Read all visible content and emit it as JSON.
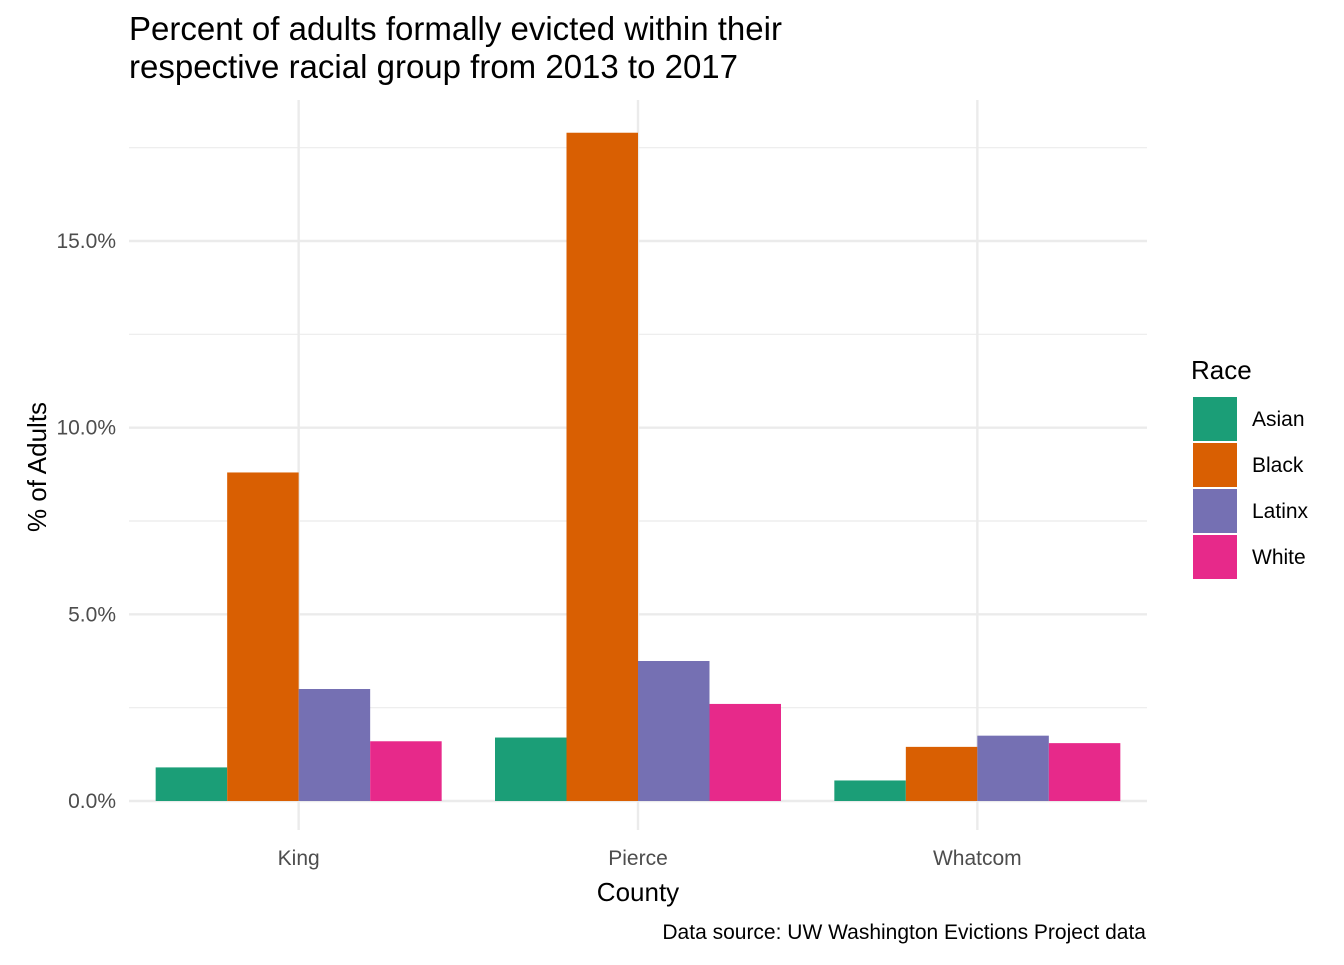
{
  "chart_data": {
    "type": "bar",
    "title_lines": [
      "Percent of adults formally evicted within their",
      "respective racial group from 2013 to 2017"
    ],
    "xlabel": "County",
    "ylabel": "% of Adults",
    "caption": "Data source: UW Washington Evictions Project data",
    "categories": [
      "King",
      "Pierce",
      "Whatcom"
    ],
    "series": [
      {
        "name": "Asian",
        "color": "#1b9e77",
        "values": [
          0.9,
          1.7,
          0.55
        ]
      },
      {
        "name": "Black",
        "color": "#d95f02",
        "values": [
          8.8,
          17.9,
          1.45
        ]
      },
      {
        "name": "Latinx",
        "color": "#7570b3",
        "values": [
          3.0,
          3.75,
          1.75
        ]
      },
      {
        "name": "White",
        "color": "#e7298a",
        "values": [
          1.6,
          2.6,
          1.55
        ]
      }
    ],
    "yticks": [
      0,
      5,
      10,
      15
    ],
    "ytick_labels": [
      "0.0%",
      "5.0%",
      "10.0%",
      "15.0%"
    ],
    "ylim": [
      0,
      18.5
    ],
    "legend": {
      "title": "Race",
      "position": "right"
    },
    "grid": true,
    "theme": "minimal"
  }
}
